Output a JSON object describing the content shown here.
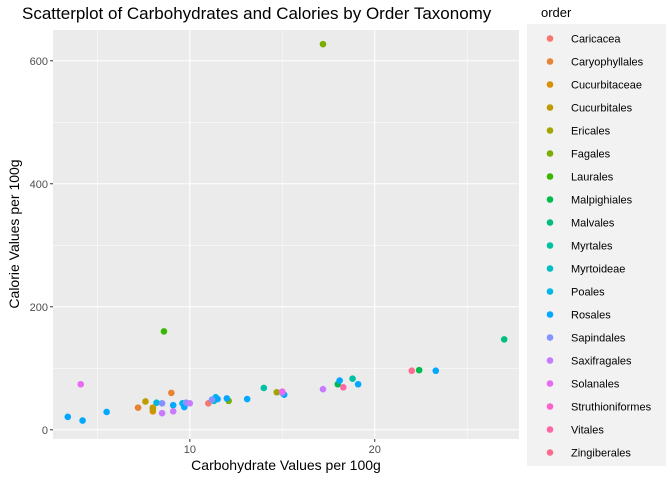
{
  "chart_data": {
    "type": "scatter",
    "title": "Scatterplot of Carbohydrates and Calories by Order Taxonomy",
    "xlabel": "Carbohydrate Values per 100g",
    "ylabel": "Calorie Values per 100g",
    "xlim": [
      2.6,
      27.8
    ],
    "ylim": [
      -15,
      650
    ],
    "x_ticks": [
      10,
      20
    ],
    "x_tick_labels": [
      "10",
      "20"
    ],
    "y_ticks": [
      0,
      200,
      400,
      600
    ],
    "y_tick_labels": [
      "0",
      "200",
      "400",
      "600"
    ],
    "grid": true,
    "legend_title": "order",
    "legend_position": "right",
    "series": [
      {
        "name": "Caricacea",
        "color": "#F8766D",
        "points": [
          [
            11,
            43
          ]
        ]
      },
      {
        "name": "Caryophyllales",
        "color": "#EA8331",
        "points": [
          [
            7.2,
            36
          ],
          [
            9,
            60
          ]
        ]
      },
      {
        "name": "Cucurbitaceae",
        "color": "#D89000",
        "points": [
          [
            8,
            30
          ],
          [
            8,
            36
          ]
        ]
      },
      {
        "name": "Cucurbitales",
        "color": "#C09B00",
        "points": [
          [
            7.6,
            46
          ],
          [
            8,
            34
          ]
        ]
      },
      {
        "name": "Ericales",
        "color": "#A3A500",
        "points": [
          [
            14.7,
            61
          ]
        ]
      },
      {
        "name": "Fagales",
        "color": "#7CAE00",
        "points": [
          [
            17.2,
            627
          ],
          [
            12.1,
            47
          ]
        ]
      },
      {
        "name": "Laurales",
        "color": "#39B600",
        "points": [
          [
            8.6,
            160
          ]
        ]
      },
      {
        "name": "Malpighiales",
        "color": "#00BB4E",
        "points": [
          [
            22.4,
            97
          ],
          [
            18,
            74
          ]
        ]
      },
      {
        "name": "Malvales",
        "color": "#00BF7D",
        "points": [
          [
            27,
            147
          ]
        ]
      },
      {
        "name": "Myrtales",
        "color": "#00C1A3",
        "points": [
          [
            14,
            68
          ],
          [
            18.8,
            83
          ]
        ]
      },
      {
        "name": "Myrtoideae",
        "color": "#00BFC4",
        "points": [
          [
            11.3,
            47
          ]
        ]
      },
      {
        "name": "Poales",
        "color": "#00B8E7",
        "points": [
          [
            8.2,
            44
          ],
          [
            9.6,
            43
          ],
          [
            11.4,
            53
          ]
        ]
      },
      {
        "name": "Rosales",
        "color": "#00A9FF",
        "points": [
          [
            3.4,
            21
          ],
          [
            4.2,
            15
          ],
          [
            5.5,
            29
          ],
          [
            9.1,
            40
          ],
          [
            9.7,
            37
          ],
          [
            11.5,
            50
          ],
          [
            12,
            51
          ],
          [
            13.1,
            50
          ],
          [
            15.1,
            57
          ],
          [
            18.1,
            80
          ],
          [
            19.1,
            74
          ],
          [
            23.3,
            96
          ]
        ]
      },
      {
        "name": "Sapindales",
        "color": "#8494FF",
        "points": [
          [
            8.5,
            43
          ],
          [
            9.8,
            44
          ],
          [
            11.2,
            49
          ],
          [
            15,
            60
          ]
        ]
      },
      {
        "name": "Saxifragales",
        "color": "#C77CFF",
        "points": [
          [
            8.5,
            27
          ],
          [
            9.1,
            30
          ],
          [
            10,
            43
          ],
          [
            17.2,
            66
          ]
        ]
      },
      {
        "name": "Solanales",
        "color": "#E76BF3",
        "points": [
          [
            4.1,
            74
          ],
          [
            15,
            62
          ]
        ]
      },
      {
        "name": "Struthioniformes",
        "color": "#FF61CC",
        "points": []
      },
      {
        "name": "Vitales",
        "color": "#FF67A4",
        "points": [
          [
            18.3,
            69
          ]
        ]
      },
      {
        "name": "Zingiberales",
        "color": "#FF6C91",
        "points": [
          [
            22,
            96
          ]
        ]
      }
    ]
  }
}
